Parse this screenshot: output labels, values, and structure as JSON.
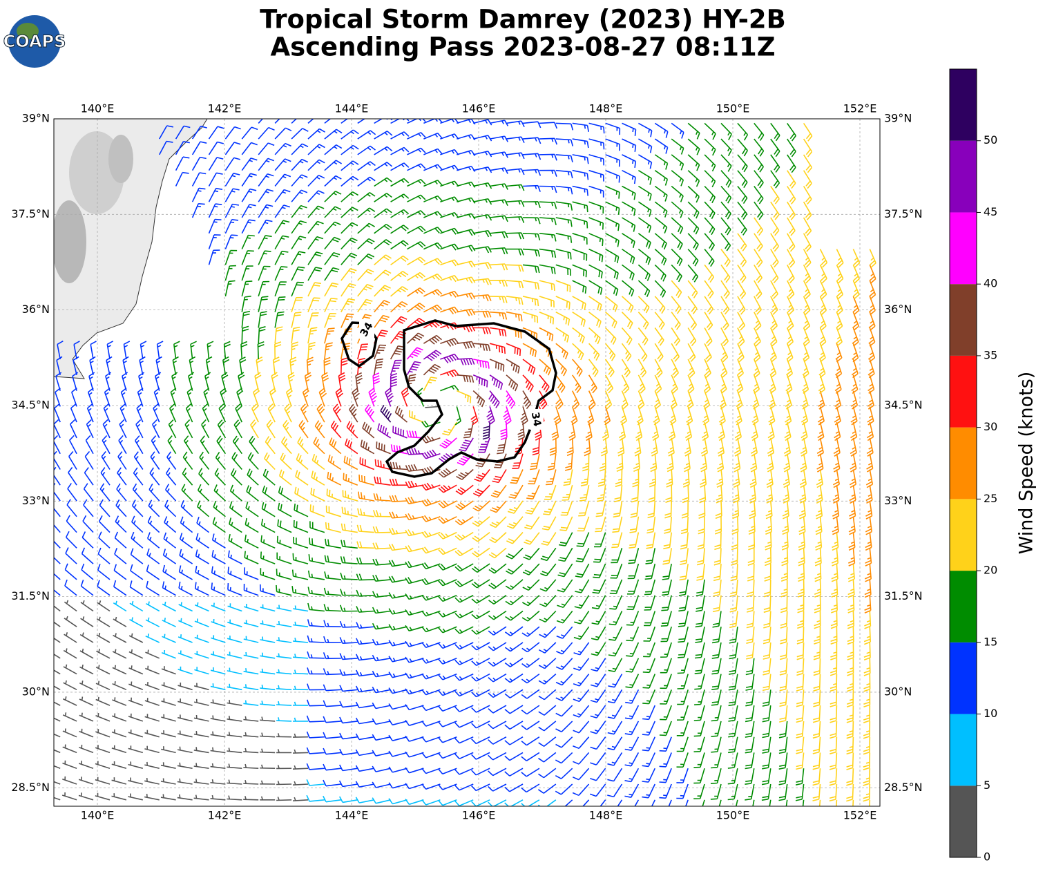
{
  "header": {
    "logo": "COAPS",
    "title_line1": "Tropical Storm Damrey (2023) HY-2B",
    "title_line2": "Ascending Pass 2023-08-27 08:11Z"
  },
  "chart_data": {
    "type": "barb-map",
    "xlim": [
      139.315,
      152.315
    ],
    "ylim": [
      28.21,
      39
    ],
    "xticks": [
      {
        "value": 140,
        "label": "140°E"
      },
      {
        "value": 142,
        "label": "142°E"
      },
      {
        "value": 144,
        "label": "144°E"
      },
      {
        "value": 146,
        "label": "146°E"
      },
      {
        "value": 148,
        "label": "148°E"
      },
      {
        "value": 150,
        "label": "150°E"
      },
      {
        "value": 152,
        "label": "152°E"
      }
    ],
    "yticks": [
      {
        "value": 39,
        "label": "39°N"
      },
      {
        "value": 37.5,
        "label": "37.5°N"
      },
      {
        "value": 36,
        "label": "36°N"
      },
      {
        "value": 34.5,
        "label": "34.5°N"
      },
      {
        "value": 33,
        "label": "33°N"
      },
      {
        "value": 31.5,
        "label": "31.5°N"
      },
      {
        "value": 30,
        "label": "30°N"
      },
      {
        "value": 28.5,
        "label": "28.5°N"
      }
    ],
    "grid": true,
    "contour_label": "34",
    "colorbar": {
      "label": "Wind Speed (knots)",
      "levels": [
        0,
        5,
        10,
        15,
        20,
        25,
        30,
        35,
        40,
        45,
        50,
        55
      ],
      "colors": [
        "#555555",
        "#00bfff",
        "#0033ff",
        "#008c00",
        "#ffd21a",
        "#ff8c00",
        "#ff1111",
        "#803f2a",
        "#ff00ff",
        "#8800bb",
        "#2e0060"
      ],
      "ticks": [
        0,
        5,
        10,
        15,
        20,
        25,
        30,
        35,
        40,
        45,
        50
      ]
    }
  }
}
